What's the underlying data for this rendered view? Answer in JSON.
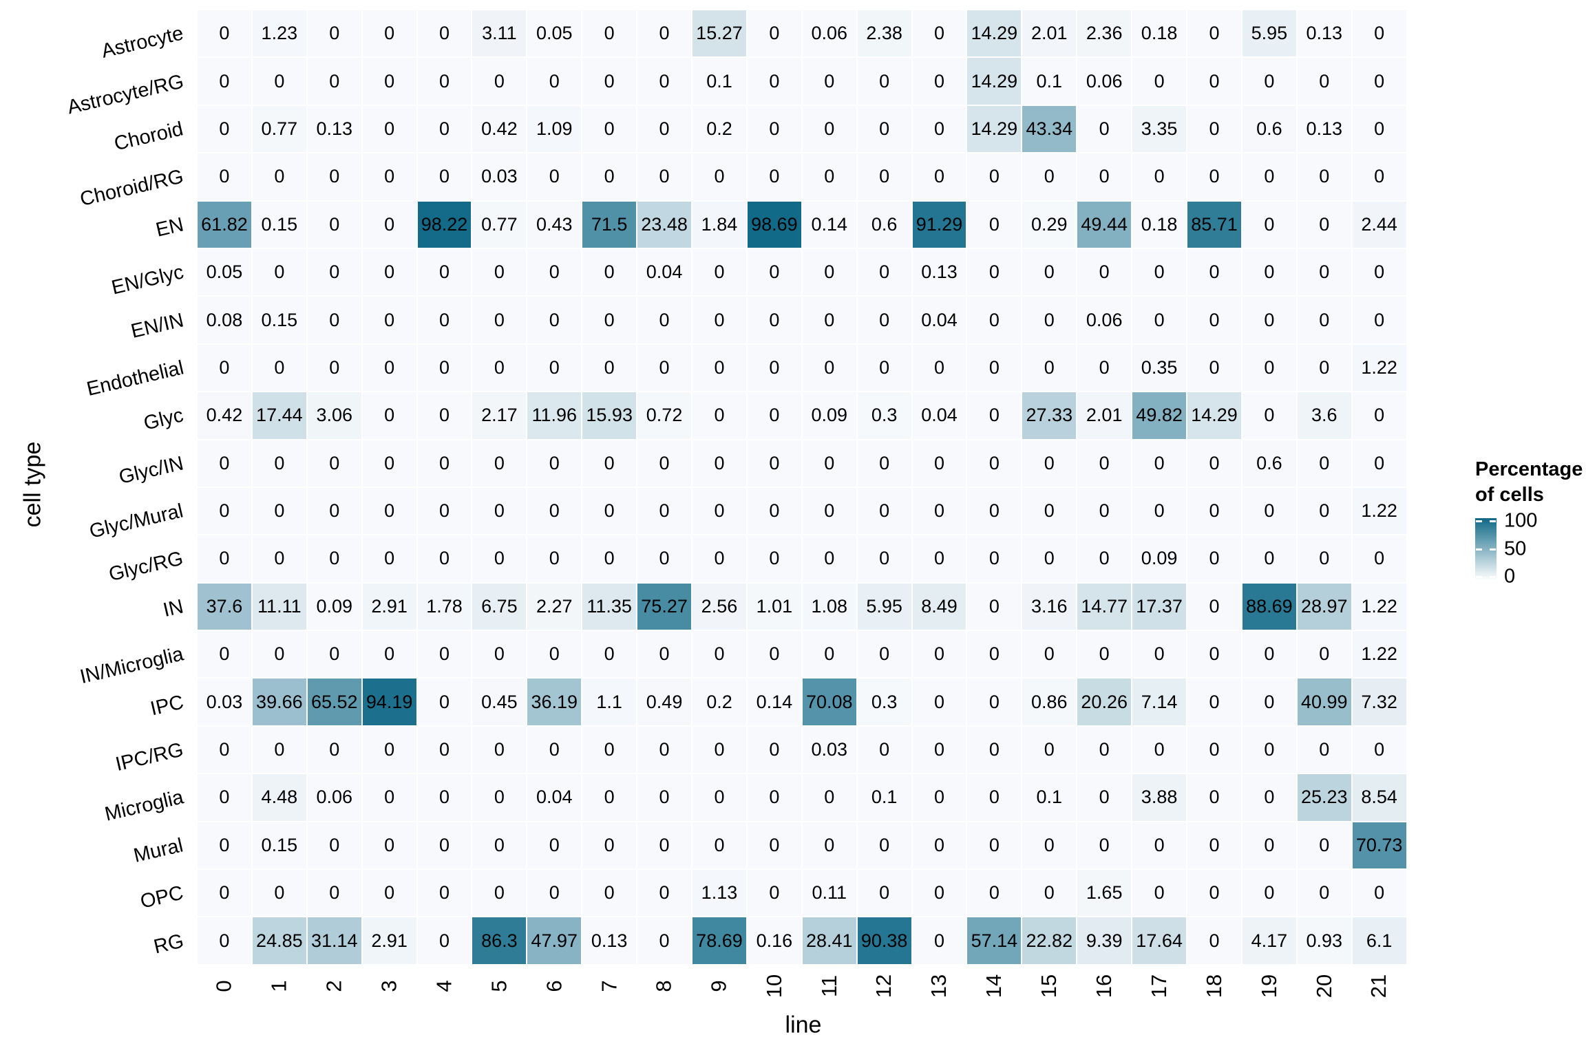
{
  "chart_data": {
    "type": "heatmap",
    "title": "",
    "xlabel": "line",
    "ylabel": "cell type",
    "legend": {
      "title_line1": "Percentage",
      "title_line2": "of cells",
      "ticks": [
        100,
        50,
        0
      ],
      "position": "right"
    },
    "colors": {
      "low": "#f7f9fc",
      "high": "#0f6887",
      "cell_text": "#000000",
      "background": "#ffffff"
    },
    "value_range": [
      0,
      100
    ],
    "grid": "white-gaps",
    "x_categories": [
      "0",
      "1",
      "2",
      "3",
      "4",
      "5",
      "6",
      "7",
      "8",
      "9",
      "10",
      "11",
      "12",
      "13",
      "14",
      "15",
      "16",
      "17",
      "18",
      "19",
      "20",
      "21"
    ],
    "y_categories": [
      "Astrocyte",
      "Astrocyte/RG",
      "Choroid",
      "Choroid/RG",
      "EN",
      "EN/Glyc",
      "EN/IN",
      "Endothelial",
      "Glyc",
      "Glyc/IN",
      "Glyc/Mural",
      "Glyc/RG",
      "IN",
      "IN/Microglia",
      "IPC",
      "IPC/RG",
      "Microglia",
      "Mural",
      "OPC",
      "RG"
    ],
    "values": [
      [
        0,
        1.23,
        0,
        0,
        0,
        3.11,
        0.05,
        0,
        0,
        15.27,
        0,
        0.06,
        2.38,
        0,
        14.29,
        2.01,
        2.36,
        0.18,
        0,
        5.95,
        0.13,
        0
      ],
      [
        0,
        0,
        0,
        0,
        0,
        0,
        0,
        0,
        0,
        0.1,
        0,
        0,
        0,
        0,
        14.29,
        0.1,
        0.06,
        0,
        0,
        0,
        0,
        0
      ],
      [
        0,
        0.77,
        0.13,
        0,
        0,
        0.42,
        1.09,
        0,
        0,
        0.2,
        0,
        0,
        0,
        0,
        14.29,
        43.34,
        0,
        3.35,
        0,
        0.6,
        0.13,
        0
      ],
      [
        0,
        0,
        0,
        0,
        0,
        0.03,
        0,
        0,
        0,
        0,
        0,
        0,
        0,
        0,
        0,
        0,
        0,
        0,
        0,
        0,
        0,
        0
      ],
      [
        61.82,
        0.15,
        0,
        0,
        98.22,
        0.77,
        0.43,
        71.5,
        23.48,
        1.84,
        98.69,
        0.14,
        0.6,
        91.29,
        0,
        0.29,
        49.44,
        0.18,
        85.71,
        0,
        0,
        2.44
      ],
      [
        0.05,
        0,
        0,
        0,
        0,
        0,
        0,
        0,
        0.04,
        0,
        0,
        0,
        0,
        0.13,
        0,
        0,
        0,
        0,
        0,
        0,
        0,
        0
      ],
      [
        0.08,
        0.15,
        0,
        0,
        0,
        0,
        0,
        0,
        0,
        0,
        0,
        0,
        0,
        0.04,
        0,
        0,
        0.06,
        0,
        0,
        0,
        0,
        0
      ],
      [
        0,
        0,
        0,
        0,
        0,
        0,
        0,
        0,
        0,
        0,
        0,
        0,
        0,
        0,
        0,
        0,
        0,
        0.35,
        0,
        0,
        0,
        1.22
      ],
      [
        0.42,
        17.44,
        3.06,
        0,
        0,
        2.17,
        11.96,
        15.93,
        0.72,
        0,
        0,
        0.09,
        0.3,
        0.04,
        0,
        27.33,
        2.01,
        49.82,
        14.29,
        0,
        3.6,
        0
      ],
      [
        0,
        0,
        0,
        0,
        0,
        0,
        0,
        0,
        0,
        0,
        0,
        0,
        0,
        0,
        0,
        0,
        0,
        0,
        0,
        0.6,
        0,
        0
      ],
      [
        0,
        0,
        0,
        0,
        0,
        0,
        0,
        0,
        0,
        0,
        0,
        0,
        0,
        0,
        0,
        0,
        0,
        0,
        0,
        0,
        0,
        1.22
      ],
      [
        0,
        0,
        0,
        0,
        0,
        0,
        0,
        0,
        0,
        0,
        0,
        0,
        0,
        0,
        0,
        0,
        0,
        0.09,
        0,
        0,
        0,
        0
      ],
      [
        37.6,
        11.11,
        0.09,
        2.91,
        1.78,
        6.75,
        2.27,
        11.35,
        75.27,
        2.56,
        1.01,
        1.08,
        5.95,
        8.49,
        0,
        3.16,
        14.77,
        17.37,
        0,
        88.69,
        28.97,
        1.22
      ],
      [
        0,
        0,
        0,
        0,
        0,
        0,
        0,
        0,
        0,
        0,
        0,
        0,
        0,
        0,
        0,
        0,
        0,
        0,
        0,
        0,
        0,
        1.22
      ],
      [
        0.03,
        39.66,
        65.52,
        94.19,
        0,
        0.45,
        36.19,
        1.1,
        0.49,
        0.2,
        0.14,
        70.08,
        0.3,
        0,
        0,
        0.86,
        20.26,
        7.14,
        0,
        0,
        40.99,
        7.32
      ],
      [
        0,
        0,
        0,
        0,
        0,
        0,
        0,
        0,
        0,
        0,
        0,
        0.03,
        0,
        0,
        0,
        0,
        0,
        0,
        0,
        0,
        0,
        0
      ],
      [
        0,
        4.48,
        0.06,
        0,
        0,
        0,
        0.04,
        0,
        0,
        0,
        0,
        0,
        0.1,
        0,
        0,
        0.1,
        0,
        3.88,
        0,
        0,
        25.23,
        8.54
      ],
      [
        0,
        0.15,
        0,
        0,
        0,
        0,
        0,
        0,
        0,
        0,
        0,
        0,
        0,
        0,
        0,
        0,
        0,
        0,
        0,
        0,
        0,
        70.73
      ],
      [
        0,
        0,
        0,
        0,
        0,
        0,
        0,
        0,
        0,
        1.13,
        0,
        0.11,
        0,
        0,
        0,
        0,
        1.65,
        0,
        0,
        0,
        0,
        0
      ],
      [
        0,
        24.85,
        31.14,
        2.91,
        0,
        86.3,
        47.97,
        0.13,
        0,
        78.69,
        0.16,
        28.41,
        90.38,
        0,
        57.14,
        22.82,
        9.39,
        17.64,
        0,
        4.17,
        0.93,
        6.1
      ]
    ]
  }
}
